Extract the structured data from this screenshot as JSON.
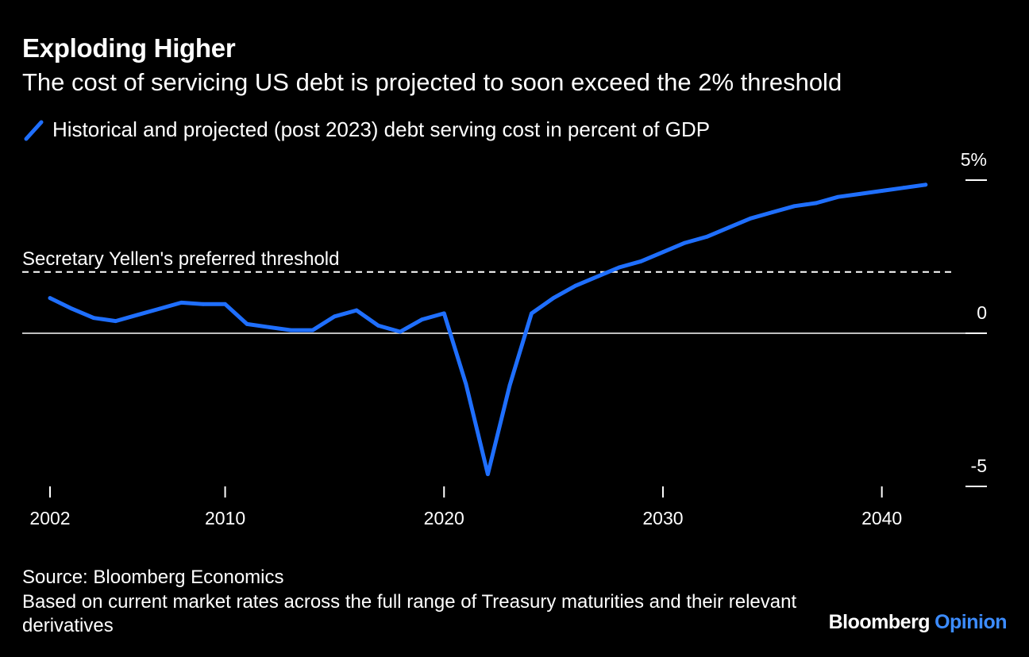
{
  "header": {
    "title": "Exploding Higher",
    "subtitle": "The cost of servicing US debt is projected to soon exceed the 2% threshold"
  },
  "legend": {
    "label": "Historical and projected (post 2023) debt serving cost in percent of GDP",
    "color": "#1f6fff",
    "icon": "line-swatch-icon"
  },
  "footer": {
    "source": "Source: Bloomberg Economics",
    "note": "Based on current market rates across the full range of Treasury maturities and their relevant derivatives"
  },
  "brand": {
    "name": "Bloomberg",
    "section": "Opinion",
    "accent_color": "#3c8cff"
  },
  "chart_data": {
    "type": "line",
    "title": "Exploding Higher",
    "subtitle": "The cost of servicing US debt is projected to soon exceed the 2% threshold",
    "xlabel": "",
    "ylabel": "",
    "xlim": [
      2002,
      2044.8
    ],
    "ylim": [
      -5,
      5
    ],
    "x_ticks": [
      2002,
      2010,
      2020,
      2030,
      2040
    ],
    "y_ticks": [
      {
        "value": 5,
        "label": "5%"
      },
      {
        "value": 0,
        "label": "0"
      },
      {
        "value": -5,
        "label": "-5"
      }
    ],
    "y_axis_position": "right",
    "grid": false,
    "legend_position": "top-left",
    "series": [
      {
        "name": "Historical and projected (post 2023) debt serving cost in percent of GDP",
        "color": "#1f6fff",
        "x": [
          2002,
          2003,
          2004,
          2005,
          2006,
          2007,
          2008,
          2009,
          2010,
          2011,
          2012,
          2013,
          2014,
          2015,
          2016,
          2017,
          2018,
          2019,
          2020,
          2021,
          2022,
          2023,
          2024,
          2025,
          2026,
          2027,
          2028,
          2029,
          2030,
          2031,
          2032,
          2033,
          2034,
          2035,
          2036,
          2037,
          2038,
          2039,
          2040,
          2041,
          2042
        ],
        "y": [
          1.15,
          0.8,
          0.5,
          0.4,
          0.6,
          0.8,
          1.0,
          0.95,
          0.95,
          0.3,
          0.2,
          0.1,
          0.1,
          0.55,
          0.75,
          0.25,
          0.05,
          0.45,
          0.65,
          -1.65,
          -4.6,
          -1.7,
          0.65,
          1.15,
          1.55,
          1.85,
          2.15,
          2.35,
          2.65,
          2.95,
          3.15,
          3.45,
          3.75,
          3.95,
          4.15,
          4.25,
          4.45,
          4.55,
          4.65,
          4.75,
          4.85
        ]
      }
    ],
    "reference_line": {
      "label": "Secretary Yellen's preferred threshold",
      "value": 2,
      "style": "dashed"
    },
    "zero_line": 0
  }
}
